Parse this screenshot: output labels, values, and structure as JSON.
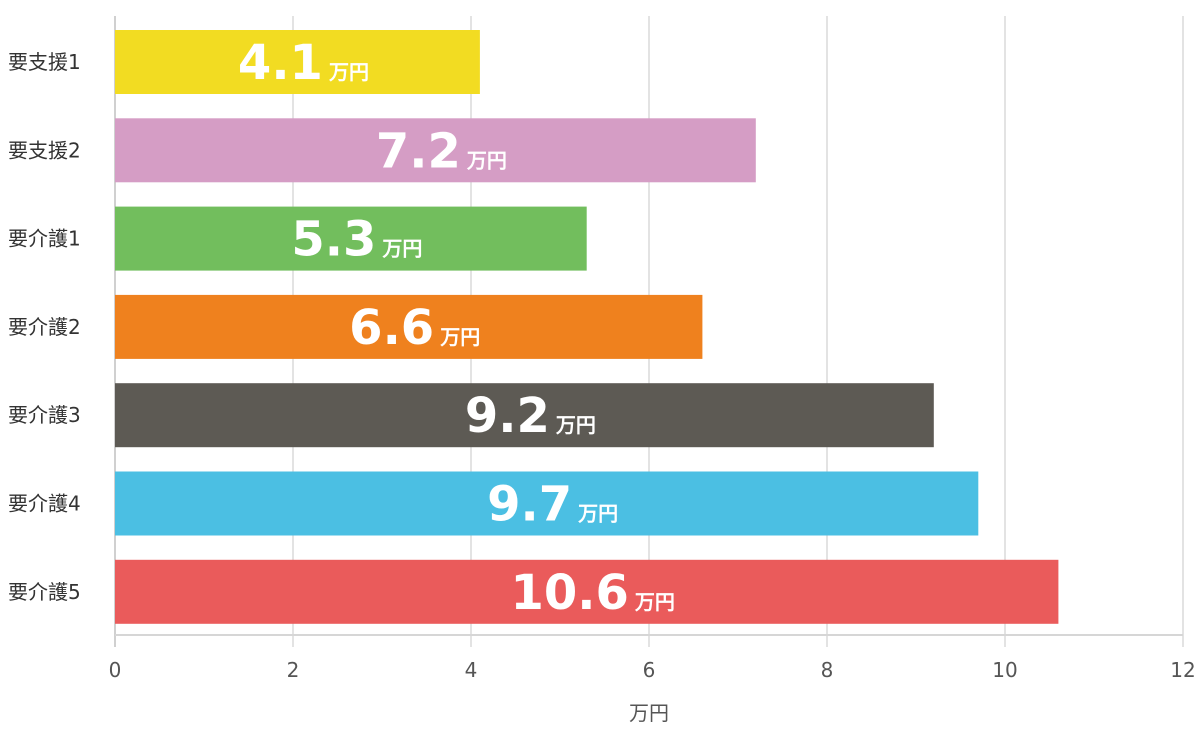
{
  "chart_data": {
    "type": "bar",
    "orientation": "horizontal",
    "categories": [
      "要支援1",
      "要支援2",
      "要介護1",
      "要介護2",
      "要介護3",
      "要介護4",
      "要介護5"
    ],
    "values": [
      4.1,
      7.2,
      5.3,
      6.6,
      9.2,
      9.7,
      10.6
    ],
    "colors": [
      "#F2DC22",
      "#D59DC5",
      "#72BE5D",
      "#EF811E",
      "#5D5A54",
      "#4BBFE3",
      "#EA5B5B"
    ],
    "value_unit": "万円",
    "xlabel": "万円",
    "ylabel": "",
    "title": "",
    "xlim": [
      0,
      12
    ],
    "xticks": [
      0,
      2,
      4,
      6,
      8,
      10,
      12
    ],
    "grid": "vertical",
    "legend": "none"
  }
}
